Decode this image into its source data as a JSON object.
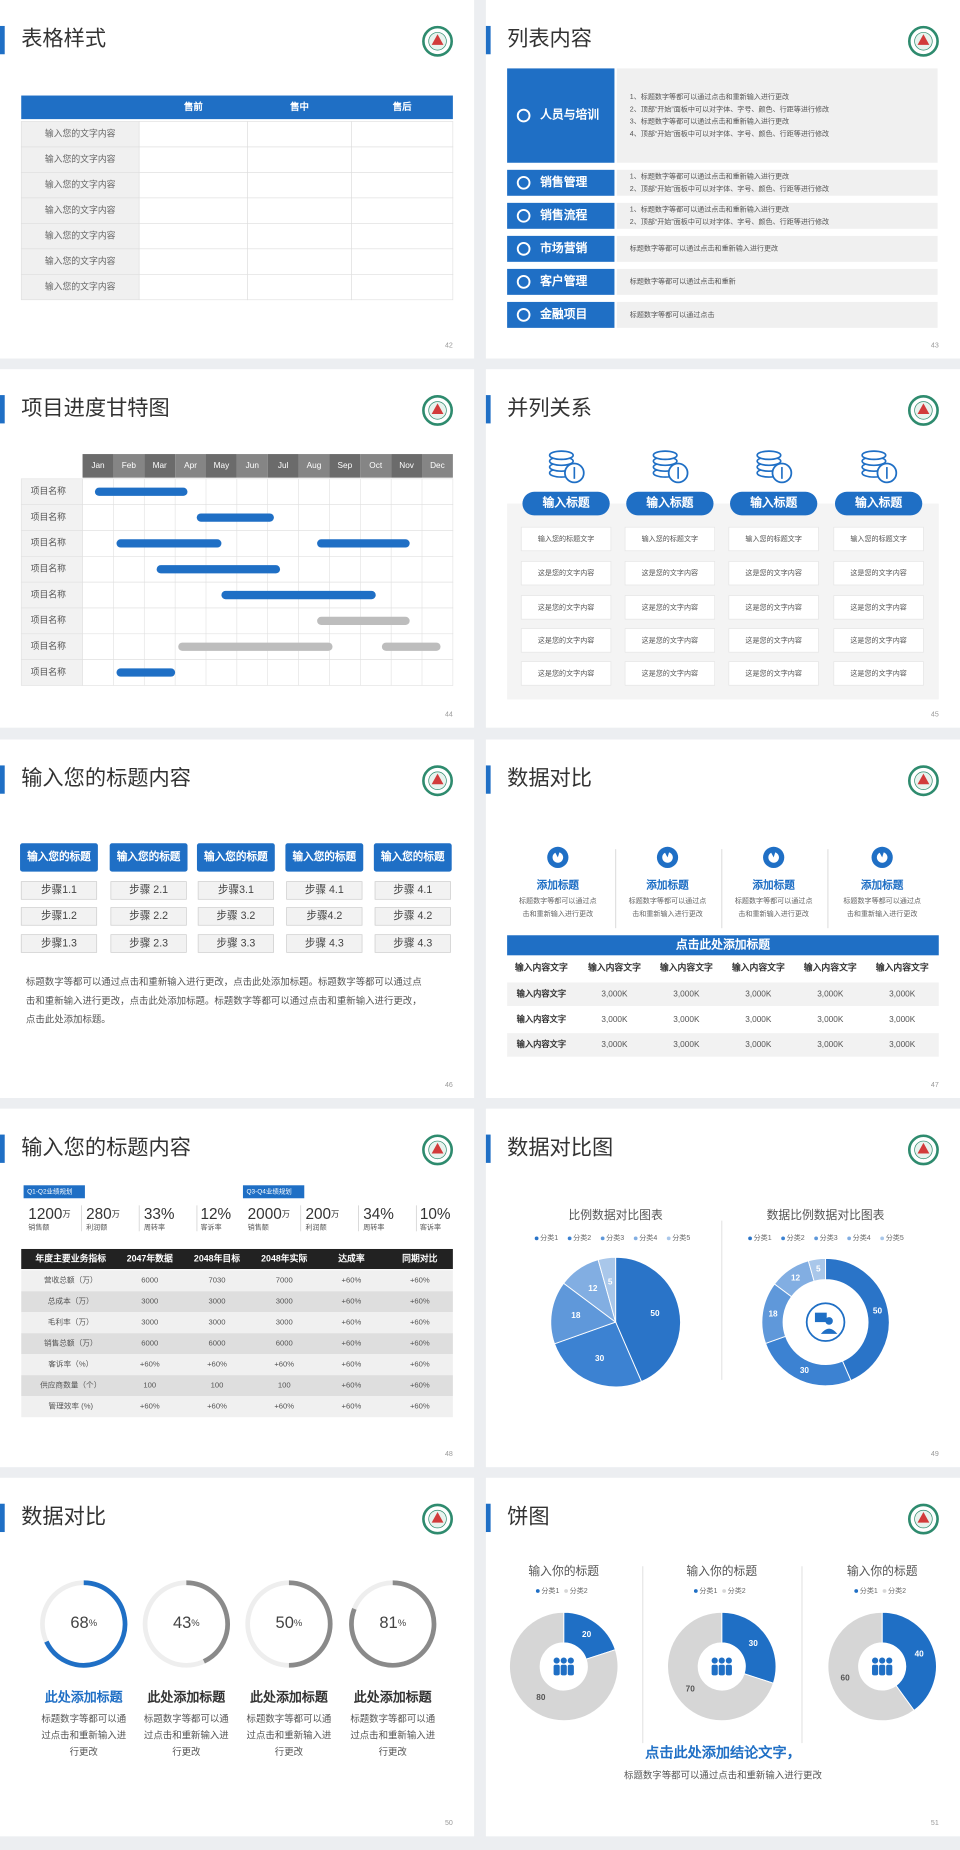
{
  "slides": [
    {
      "title": "表格样式",
      "page": "42",
      "table": {
        "header": [
          "售前",
          "售中",
          "售后"
        ],
        "row_labels": [
          "输入您的文字内容",
          "输入您的文字内容",
          "输入您的文字内容",
          "输入您的文字内容",
          "输入您的文字内容",
          "输入您的文字内容",
          "输入您的文字内容"
        ]
      }
    },
    {
      "title": "列表内容",
      "page": "43",
      "items": [
        {
          "label": "人员与培训",
          "lines": [
            "1、标题数字等都可以通过点击和重新输入进行更改",
            "2、顶部“开始”面板中可以对字体、字号、颜色、行距等进行修改",
            "3、标题数字等都可以通过点击和重新输入进行更改",
            "4、顶部“开始”面板中可以对字体、字号、颜色、行距等进行修改"
          ]
        },
        {
          "label": "销售管理",
          "lines": [
            "1、标题数字等都可以通过点击和重新输入进行更改",
            "2、顶部“开始”面板中可以对字体、字号、颜色、行距等进行修改"
          ]
        },
        {
          "label": "销售流程",
          "lines": [
            "1、标题数字等都可以通过点击和重新输入进行更改",
            "2、顶部“开始”面板中可以对字体、字号、颜色、行距等进行修改"
          ]
        },
        {
          "label": "市场营销",
          "lines": [
            "标题数字等都可以通过点击和重新输入进行更改"
          ]
        },
        {
          "label": "客户管理",
          "lines": [
            "标题数字等都可以通过点击和重新"
          ]
        },
        {
          "label": "金融项目",
          "lines": [
            "标题数字等都可以通过点击"
          ]
        }
      ]
    },
    {
      "title": "项目进度甘特图",
      "page": "44",
      "chart_data": {
        "type": "gantt",
        "categories": [
          "Jan",
          "Feb",
          "Mar",
          "Apr",
          "May",
          "Jun",
          "Jul",
          "Aug",
          "Sep",
          "Oct",
          "Nov",
          "Dec"
        ],
        "tasks": [
          {
            "label": "项目名称",
            "color": "#1f6fc5",
            "bars": [
              {
                "start": 0.4,
                "end": 3.4
              }
            ]
          },
          {
            "label": "项目名称",
            "color": "#1f6fc5",
            "bars": [
              {
                "start": 3.7,
                "end": 6.2
              }
            ]
          },
          {
            "label": "项目名称",
            "color": "#1f6fc5",
            "bars": [
              {
                "start": 1.1,
                "end": 4.5
              },
              {
                "start": 7.6,
                "end": 10.6
              }
            ]
          },
          {
            "label": "项目名称",
            "color": "#1f6fc5",
            "bars": [
              {
                "start": 2.4,
                "end": 6.4
              }
            ]
          },
          {
            "label": "项目名称",
            "color": "#1f6fc5",
            "bars": [
              {
                "start": 4.5,
                "end": 9.5
              }
            ]
          },
          {
            "label": "项目名称",
            "color": "#bdbdbd",
            "bars": [
              {
                "start": 7.6,
                "end": 10.6
              }
            ]
          },
          {
            "label": "项目名称",
            "color": "#bdbdbd",
            "bars": [
              {
                "start": 3.1,
                "end": 8.1
              },
              {
                "start": 9.7,
                "end": 11.6
              }
            ]
          },
          {
            "label": "项目名称",
            "color": "#1f6fc5",
            "bars": [
              {
                "start": 1.1,
                "end": 3.0
              }
            ]
          }
        ]
      }
    },
    {
      "title": "并列关系",
      "page": "45",
      "columns": [
        {
          "header": "输入标题",
          "cells": [
            "输入您的标题文字",
            "这是您的文字内容",
            "这是您的文字内容",
            "这是您的文字内容",
            "这是您的文字内容"
          ]
        },
        {
          "header": "输入标题",
          "cells": [
            "输入您的标题文字",
            "这是您的文字内容",
            "这是您的文字内容",
            "这是您的文字内容",
            "这是您的文字内容"
          ]
        },
        {
          "header": "输入标题",
          "cells": [
            "输入您的标题文字",
            "这是您的文字内容",
            "这是您的文字内容",
            "这是您的文字内容",
            "这是您的文字内容"
          ]
        },
        {
          "header": "输入标题",
          "cells": [
            "输入您的标题文字",
            "这是您的文字内容",
            "这是您的文字内容",
            "这是您的文字内容",
            "这是您的文字内容"
          ]
        }
      ]
    },
    {
      "title": "输入您的标题内容",
      "page": "46",
      "columns": [
        {
          "header": "输入您的标题",
          "steps": [
            "步骤1.1",
            "步骤1.2",
            "步骤1.3"
          ]
        },
        {
          "header": "输入您的标题",
          "steps": [
            "步骤 2.1",
            "步骤 2.2",
            "步骤 2.3"
          ]
        },
        {
          "header": "输入您的标题",
          "steps": [
            "步骤3.1",
            "步骤 3.2",
            "步骤 3.3"
          ]
        },
        {
          "header": "输入您的标题",
          "steps": [
            "步骤 4.1",
            "步骤4.2",
            "步骤 4.3"
          ]
        },
        {
          "header": "输入您的标题",
          "steps": [
            "步骤 4.1",
            "步骤 4.2",
            "步骤 4.3"
          ]
        }
      ],
      "paragraph": [
        "标题数字等都可以通过点击和重新输入进行更改，点击此处添加标题。标题数字等都可以通过点",
        "击和重新输入进行更改，点击此处添加标题。标题数字等都可以通过点击和重新输入进行更改，",
        "点击此处添加标题。"
      ]
    },
    {
      "title": "数据对比",
      "page": "47",
      "items": [
        {
          "title": "添加标题",
          "lines": [
            "标题数字等都可以通过点",
            "击和重新输入进行更改"
          ]
        },
        {
          "title": "添加标题",
          "lines": [
            "标题数字等都可以通过点",
            "击和重新输入进行更改"
          ]
        },
        {
          "title": "添加标题",
          "lines": [
            "标题数字等都可以通过点",
            "击和重新输入进行更改"
          ]
        },
        {
          "title": "添加标题",
          "lines": [
            "标题数字等都可以通过点",
            "击和重新输入进行更改"
          ]
        }
      ],
      "table": {
        "title": "点击此处添加标题",
        "header": [
          "输入内容文字",
          "输入内容文字",
          "输入内容文字",
          "输入内容文字",
          "输入内容文字",
          "输入内容文字"
        ],
        "rows": [
          [
            "输入内容文字",
            "3,000K",
            "3,000K",
            "3,000K",
            "3,000K",
            "3,000K"
          ],
          [
            "输入内容文字",
            "3,000K",
            "3,000K",
            "3,000K",
            "3,000K",
            "3,000K"
          ],
          [
            "输入内容文字",
            "3,000K",
            "3,000K",
            "3,000K",
            "3,000K",
            "3,000K"
          ]
        ]
      }
    },
    {
      "title": "输入您的标题内容",
      "page": "48",
      "groups": [
        {
          "tag": "Q1-Q2业绩规划",
          "stats": [
            {
              "value": "1200",
              "unit": "万",
              "label": "销售额"
            },
            {
              "value": "280",
              "unit": "万",
              "label": "利润额"
            },
            {
              "value": "33%",
              "label": "周转率"
            },
            {
              "value": "12%",
              "label": "客诉率"
            }
          ]
        },
        {
          "tag": "Q3-Q4业绩规划",
          "stats": [
            {
              "value": "2000",
              "unit": "万",
              "label": "销售额"
            },
            {
              "value": "200",
              "unit": "万",
              "label": "利润额"
            },
            {
              "value": "34%",
              "label": "周转率"
            },
            {
              "value": "10%",
              "label": "客诉率"
            }
          ]
        }
      ],
      "table": {
        "header": [
          "年度主要业务指标",
          "2047年数据",
          "2048年目标",
          "2048年实际",
          "达成率",
          "同期对比"
        ],
        "rows": [
          [
            "营收总额（万）",
            "6000",
            "7030",
            "7000",
            "+60%",
            "+60%"
          ],
          [
            "总成本（万）",
            "3000",
            "3000",
            "3000",
            "+60%",
            "+60%"
          ],
          [
            "毛利率（万）",
            "3000",
            "3000",
            "3000",
            "+60%",
            "+60%"
          ],
          [
            "销售总额（万）",
            "6000",
            "6000",
            "6000",
            "+60%",
            "+60%"
          ],
          [
            "客诉率（%）",
            "+60%",
            "+60%",
            "+60%",
            "+60%",
            "+60%"
          ],
          [
            "供应商数量（个）",
            "100",
            "100",
            "100",
            "+60%",
            "+60%"
          ],
          [
            "管理效率 (%)",
            "+60%",
            "+60%",
            "+60%",
            "+60%",
            "+60%"
          ]
        ]
      }
    },
    {
      "title": "数据对比图",
      "page": "49",
      "chart_data": [
        {
          "type": "pie",
          "title": "比例数据对比图表",
          "categories": [
            "分类1",
            "分类2",
            "分类3",
            "分类4",
            "分类5"
          ],
          "values": [
            50,
            30,
            18,
            12,
            5
          ],
          "colors": [
            "#2a74c8",
            "#3c82d2",
            "#5f98da",
            "#82aee2",
            "#a9c7ea"
          ]
        },
        {
          "type": "donut",
          "title": "数据比例数据对比图表",
          "categories": [
            "分类1",
            "分类2",
            "分类3",
            "分类4",
            "分类5"
          ],
          "values": [
            50,
            30,
            18,
            12,
            5
          ],
          "colors": [
            "#2a74c8",
            "#3c82d2",
            "#5f98da",
            "#82aee2",
            "#a9c7ea"
          ]
        }
      ]
    },
    {
      "title": "数据对比",
      "page": "50",
      "chart_data": {
        "type": "ring",
        "values": [
          68,
          43,
          50,
          81
        ],
        "unit": "%",
        "colors": [
          "#1f6fc5",
          "#8a8a8a",
          "#8a8a8a",
          "#8a8a8a"
        ]
      },
      "items": [
        {
          "title": "此处添加标题",
          "lines": [
            "标题数字等都可以通",
            "过点击和重新输入进",
            "行更改"
          ]
        },
        {
          "title": "此处添加标题",
          "lines": [
            "标题数字等都可以通",
            "过点击和重新输入进",
            "行更改"
          ]
        },
        {
          "title": "此处添加标题",
          "lines": [
            "标题数字等都可以通",
            "过点击和重新输入进",
            "行更改"
          ]
        },
        {
          "title": "此处添加标题",
          "lines": [
            "标题数字等都可以通",
            "过点击和重新输入进",
            "行更改"
          ]
        }
      ]
    },
    {
      "title": "饼图",
      "page": "51",
      "chart_data": [
        {
          "type": "donut",
          "title": "输入你的标题",
          "categories": [
            "分类1",
            "分类2"
          ],
          "values": [
            20,
            80
          ],
          "colors": [
            "#1f6fc5",
            "#d6d6d6"
          ]
        },
        {
          "type": "donut",
          "title": "输入你的标题",
          "categories": [
            "分类1",
            "分类2"
          ],
          "values": [
            30,
            70
          ],
          "colors": [
            "#1f6fc5",
            "#d6d6d6"
          ]
        },
        {
          "type": "donut",
          "title": "输入你的标题",
          "categories": [
            "分类1",
            "分类2"
          ],
          "values": [
            40,
            60
          ],
          "colors": [
            "#1f6fc5",
            "#d6d6d6"
          ]
        }
      ],
      "conclusion": "点击此处添加结论文字，",
      "note": "标题数字等都可以通过点击和重新输入进行更改"
    }
  ]
}
